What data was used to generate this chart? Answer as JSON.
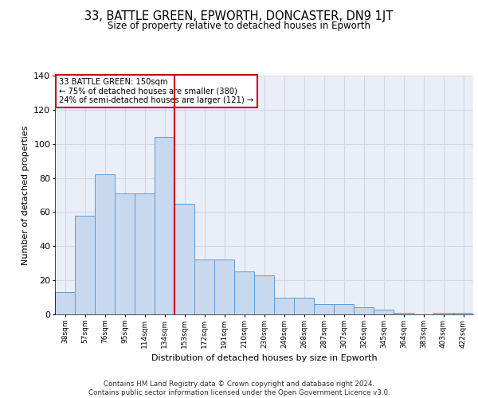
{
  "title": "33, BATTLE GREEN, EPWORTH, DONCASTER, DN9 1JT",
  "subtitle": "Size of property relative to detached houses in Epworth",
  "xlabel": "Distribution of detached houses by size in Epworth",
  "ylabel": "Number of detached properties",
  "categories": [
    "38sqm",
    "57sqm",
    "76sqm",
    "95sqm",
    "114sqm",
    "134sqm",
    "153sqm",
    "172sqm",
    "191sqm",
    "210sqm",
    "230sqm",
    "249sqm",
    "268sqm",
    "287sqm",
    "307sqm",
    "326sqm",
    "345sqm",
    "364sqm",
    "383sqm",
    "403sqm",
    "422sqm"
  ],
  "values": [
    13,
    58,
    82,
    71,
    71,
    104,
    65,
    32,
    32,
    25,
    23,
    10,
    10,
    6,
    6,
    4,
    3,
    1,
    0,
    1,
    1
  ],
  "bar_color": "#c8d9ef",
  "bar_edge_color": "#5b9bd5",
  "red_line_index": 6,
  "annotation_text": "33 BATTLE GREEN: 150sqm\n← 75% of detached houses are smaller (380)\n24% of semi-detached houses are larger (121) →",
  "annotation_box_color": "#ffffff",
  "annotation_box_edge_color": "#cc0000",
  "grid_color": "#d0d8e8",
  "background_color": "#eaeff7",
  "footer_text": "Contains HM Land Registry data © Crown copyright and database right 2024.\nContains public sector information licensed under the Open Government Licence v3.0.",
  "ylim": [
    0,
    140
  ],
  "yticks": [
    0,
    20,
    40,
    60,
    80,
    100,
    120,
    140
  ]
}
